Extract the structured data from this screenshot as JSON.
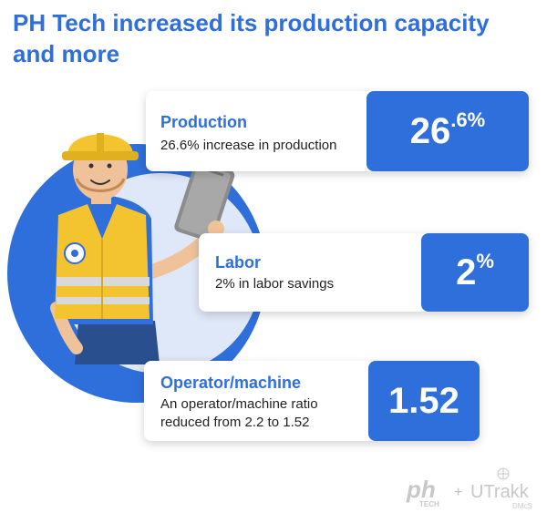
{
  "title": "PH Tech increased its production capacity and more",
  "colors": {
    "brand_blue": "#2f6fdb",
    "accent_yellow": "#f4c430",
    "text_dark": "#222222"
  },
  "cards": [
    {
      "label": "Production",
      "desc": "26.6% increase in production",
      "stat_main": "26",
      "stat_decimal": ".6",
      "stat_suffix": "%"
    },
    {
      "label": "Labor",
      "desc": "2% in labor savings",
      "stat_main": "2",
      "stat_suffix": "%"
    },
    {
      "label": "Operator/machine",
      "desc": "An operator/machine ratio reduced from 2.2 to 1.52",
      "stat_main": "1.52"
    }
  ],
  "footer": {
    "logo_ph": "ph",
    "logo_ph_sub": "TECH",
    "plus": "+",
    "logo_utrakk": "UTrakk",
    "logo_utrakk_sub": "DMcS"
  }
}
